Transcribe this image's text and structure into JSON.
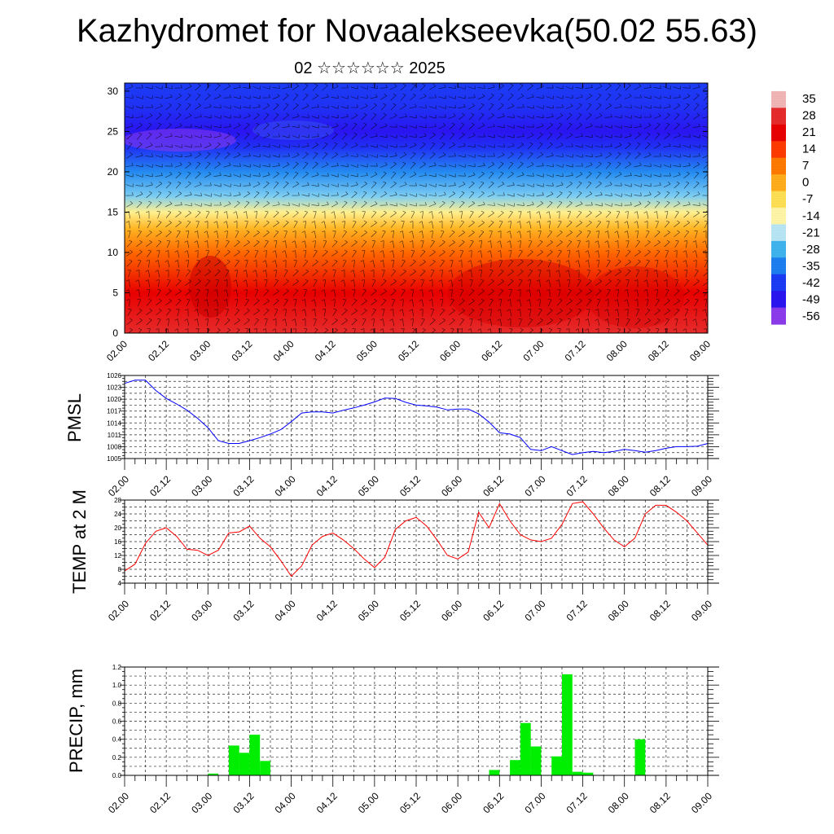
{
  "header": {
    "title": "Kazhydromet for Novaalekseevka(50.02 55.63)",
    "subtitle": "02 ☆☆☆☆☆☆ 2025"
  },
  "time_ticks": [
    "02.00",
    "02.12",
    "03.00",
    "03.12",
    "04.00",
    "04.12",
    "05.00",
    "05.12",
    "06.00",
    "06.12",
    "07.00",
    "07.12",
    "08.00",
    "08.12",
    "09.00"
  ],
  "colors": {
    "pmsl_line": "#0000ff",
    "temp_line": "#ff0000",
    "precip_bar": "#00ee00",
    "grid": "#000000"
  },
  "chart_data": [
    {
      "type": "heatmap",
      "name": "cross-section",
      "x_ticks": [
        "02.00",
        "02.12",
        "03.00",
        "03.12",
        "04.00",
        "04.12",
        "05.00",
        "05.12",
        "06.00",
        "06.12",
        "07.00",
        "07.12",
        "08.00",
        "08.12",
        "09.00"
      ],
      "y_ticks": [
        0,
        5,
        10,
        15,
        20,
        25,
        30
      ],
      "ylim": [
        0,
        31
      ],
      "colorbar": {
        "labels": [
          "35",
          "28",
          "21",
          "14",
          "7",
          "0",
          "-7",
          "-14",
          "-21",
          "-28",
          "-35",
          "-42",
          "-49",
          "-56"
        ],
        "colors": [
          "#f2b6b6",
          "#e62b2b",
          "#e80000",
          "#ff3c00",
          "#ff7a00",
          "#ffae1c",
          "#ffe055",
          "#fff6a8",
          "#b9e6f5",
          "#3fb4ee",
          "#1d7ff0",
          "#1c3cf5",
          "#2a14f0",
          "#8c3cec"
        ]
      },
      "temperature_profile": [
        {
          "h": 0,
          "t": 30
        },
        {
          "h": 5,
          "t": 22
        },
        {
          "h": 10,
          "t": 10
        },
        {
          "h": 13,
          "t": 1
        },
        {
          "h": 15,
          "t": -10
        },
        {
          "h": 17,
          "t": -25
        },
        {
          "h": 20,
          "t": -38
        },
        {
          "h": 23,
          "t": -50
        },
        {
          "h": 25,
          "t": -55
        },
        {
          "h": 28,
          "t": -50
        },
        {
          "h": 31,
          "t": -48
        }
      ]
    },
    {
      "type": "line",
      "name": "pmsl",
      "ylabel": "PMSL",
      "y_ticks": [
        1005,
        1008,
        1011,
        1014,
        1017,
        1020,
        1023,
        1026
      ],
      "ylim": [
        1005,
        1026
      ],
      "x_hours": [
        0,
        3,
        6,
        9,
        12,
        15,
        18,
        21,
        24,
        27,
        30,
        33,
        36,
        39,
        42,
        45,
        48,
        51,
        54,
        57,
        60,
        63,
        66,
        69,
        72,
        75,
        78,
        81,
        84,
        87,
        90,
        93,
        96,
        99,
        102,
        105,
        108,
        111,
        114,
        117,
        120,
        123,
        126,
        129,
        132,
        135,
        138,
        141,
        144,
        147,
        150,
        153,
        156,
        159,
        162,
        165,
        168
      ],
      "values": [
        1024.0,
        1024.8,
        1024.8,
        1022.2,
        1020.2,
        1018.8,
        1017.2,
        1015.2,
        1012.8,
        1009.5,
        1008.8,
        1008.8,
        1009.5,
        1010.3,
        1011.2,
        1012.3,
        1014.3,
        1016.5,
        1016.8,
        1016.8,
        1016.5,
        1017.2,
        1017.8,
        1018.5,
        1019.3,
        1020.3,
        1020.2,
        1019.2,
        1018.5,
        1018.3,
        1018.0,
        1017.3,
        1017.5,
        1017.5,
        1016.3,
        1014.2,
        1011.5,
        1011.2,
        1010.3,
        1007.3,
        1007.0,
        1008.0,
        1007.0,
        1006.0,
        1006.5,
        1006.8,
        1006.5,
        1006.8,
        1007.3,
        1007.0,
        1006.6,
        1007.0,
        1007.6,
        1008.0,
        1008.0,
        1008.1,
        1008.8
      ]
    },
    {
      "type": "line",
      "name": "temp-2m",
      "ylabel": "TEMP at 2 M",
      "y_ticks": [
        4,
        8,
        12,
        16,
        20,
        24,
        28
      ],
      "ylim": [
        4,
        28
      ],
      "x_hours": [
        0,
        3,
        6,
        9,
        12,
        15,
        18,
        21,
        24,
        27,
        30,
        33,
        36,
        39,
        42,
        45,
        48,
        51,
        54,
        57,
        60,
        63,
        66,
        69,
        72,
        75,
        78,
        81,
        84,
        87,
        90,
        93,
        96,
        99,
        102,
        105,
        108,
        111,
        114,
        117,
        120,
        123,
        126,
        129,
        132,
        135,
        138,
        141,
        144,
        147,
        150,
        153,
        156,
        159,
        162,
        165,
        168
      ],
      "values": [
        7.5,
        9.5,
        15.5,
        19.0,
        20.0,
        17.5,
        13.8,
        13.5,
        12.0,
        13.5,
        18.5,
        18.8,
        20.5,
        17.0,
        14.5,
        10.5,
        6.0,
        9.0,
        15.0,
        17.5,
        18.5,
        16.5,
        14.0,
        11.0,
        8.5,
        11.5,
        19.5,
        22.0,
        23.0,
        20.5,
        16.5,
        12.0,
        11.0,
        13.0,
        24.5,
        20.0,
        27.0,
        22.0,
        18.0,
        16.5,
        16.0,
        17.0,
        21.0,
        27.0,
        27.5,
        24.0,
        20.0,
        16.5,
        14.5,
        17.0,
        24.0,
        26.5,
        26.5,
        24.5,
        22.0,
        18.5,
        15.0
      ]
    },
    {
      "type": "bar",
      "name": "precip",
      "ylabel": "PRECIP, mm",
      "y_ticks": [
        "0.0",
        "0.2",
        "0.4",
        "0.6",
        "0.8",
        "1.0",
        "1.2"
      ],
      "ylim": [
        0,
        1.2
      ],
      "bars": [
        {
          "h": 24,
          "v": 0.02
        },
        {
          "h": 30,
          "v": 0.33
        },
        {
          "h": 33,
          "v": 0.25
        },
        {
          "h": 36,
          "v": 0.45
        },
        {
          "h": 39,
          "v": 0.16
        },
        {
          "h": 105,
          "v": 0.06
        },
        {
          "h": 111,
          "v": 0.17
        },
        {
          "h": 114,
          "v": 0.58
        },
        {
          "h": 117,
          "v": 0.32
        },
        {
          "h": 123,
          "v": 0.21
        },
        {
          "h": 126,
          "v": 1.12
        },
        {
          "h": 129,
          "v": 0.04
        },
        {
          "h": 132,
          "v": 0.03
        },
        {
          "h": 147,
          "v": 0.4
        }
      ]
    }
  ]
}
